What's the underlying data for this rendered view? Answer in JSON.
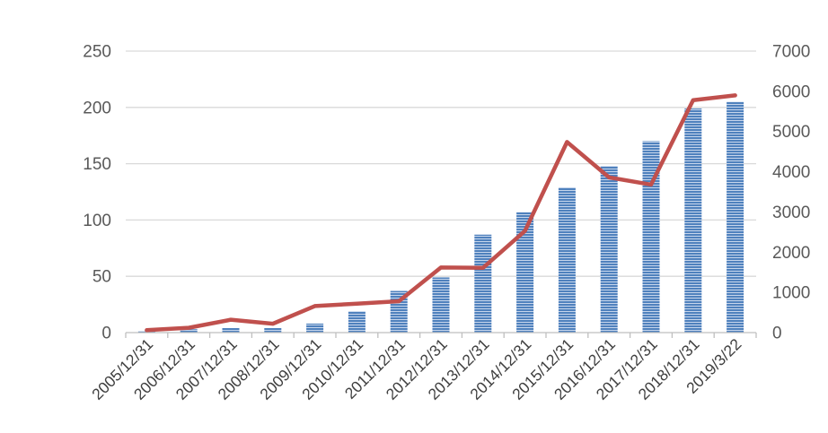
{
  "chart_data": {
    "type": "bar",
    "title": "",
    "xlabel": "",
    "ylabel": "",
    "ylim": [
      0,
      250
    ],
    "ylim_right": [
      0,
      7000
    ],
    "yticks": [
      "0",
      "50",
      "100",
      "150",
      "200",
      "250"
    ],
    "yticks_right": [
      "0",
      "1000",
      "2000",
      "3000",
      "4000",
      "5000",
      "6000",
      "7000"
    ],
    "grid": true,
    "legend": "none",
    "categories": [
      "2005/12/31",
      "2006/12/31",
      "2007/12/31",
      "2008/12/31",
      "2009/12/31",
      "2010/12/31",
      "2011/12/31",
      "2012/12/31",
      "2013/12/31",
      "2014/12/31",
      "2015/12/31",
      "2016/12/31",
      "2017/12/31",
      "2018/12/31",
      "2019/3/22"
    ],
    "series": [
      {
        "type": "bar",
        "axis": "left",
        "color": "#4f81bd",
        "values": [
          1,
          3,
          4,
          4,
          8,
          19,
          37,
          49,
          87,
          107,
          129,
          148,
          170,
          199,
          205
        ]
      },
      {
        "type": "line",
        "axis": "right",
        "color": "#c0504d",
        "values": [
          60,
          120,
          320,
          220,
          660,
          720,
          780,
          1620,
          1610,
          2530,
          4740,
          3860,
          3680,
          5780,
          5900
        ]
      }
    ]
  }
}
